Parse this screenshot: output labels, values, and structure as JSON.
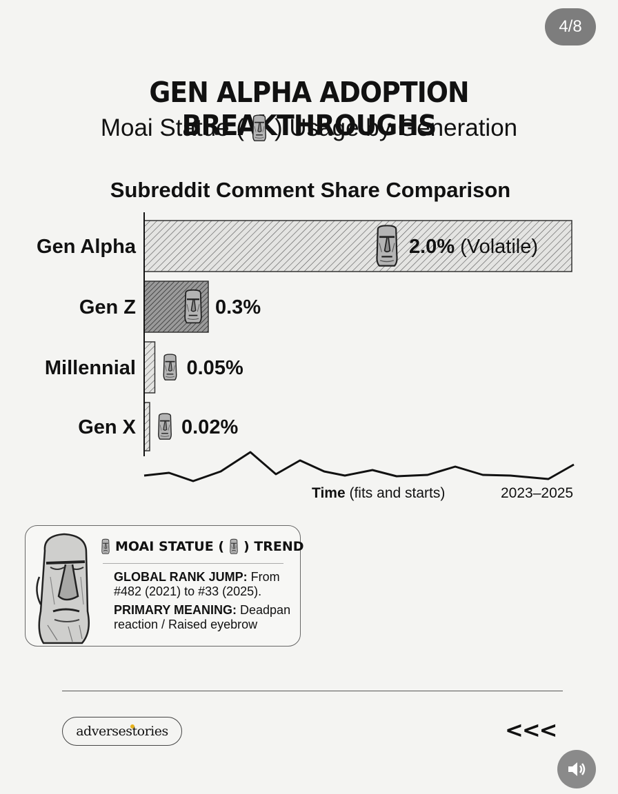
{
  "page_indicator": "4/8",
  "title": "GEN ALPHA ADOPTION BREAKTHROUGHS",
  "subtitle": {
    "before": "Moai Statue (",
    "after": ") Usage by Generation"
  },
  "chart_data": {
    "type": "bar",
    "orientation": "horizontal",
    "title": "Subreddit Comment Share Comparison",
    "categories": [
      "Gen Alpha",
      "Gen Z",
      "Millennial",
      "Gen X"
    ],
    "values": [
      2.0,
      0.3,
      0.05,
      0.02
    ],
    "value_labels": [
      "2.0%",
      "0.3%",
      "0.05%",
      "0.02%"
    ],
    "value_notes": [
      "(Volatile)",
      "",
      "",
      ""
    ],
    "unit": "%",
    "xlim": [
      0,
      2.0
    ],
    "xlabel_bold": "Time",
    "xlabel_rest": " (fits and starts)",
    "x_range_label": "2023–2025",
    "colors": {
      "bar_light": "#bdbdbd",
      "bar_dark": "#6e6e6e",
      "line": "#111111"
    }
  },
  "card": {
    "heading": {
      "before": "MOAI STATUE (",
      "after": ") TREND"
    },
    "rank_label": "GLOBAL RANK JUMP:",
    "rank_text": " From #482 (2021) to #33 (2025).",
    "meaning_label": "PRIMARY MEANING:",
    "meaning_text": " Deadpan reaction / Raised eyebrow"
  },
  "footer": {
    "logo_text": "adversestories",
    "back_arrows": "<<<"
  },
  "icons": {
    "moai": "moai-icon",
    "sound": "speaker-icon"
  }
}
